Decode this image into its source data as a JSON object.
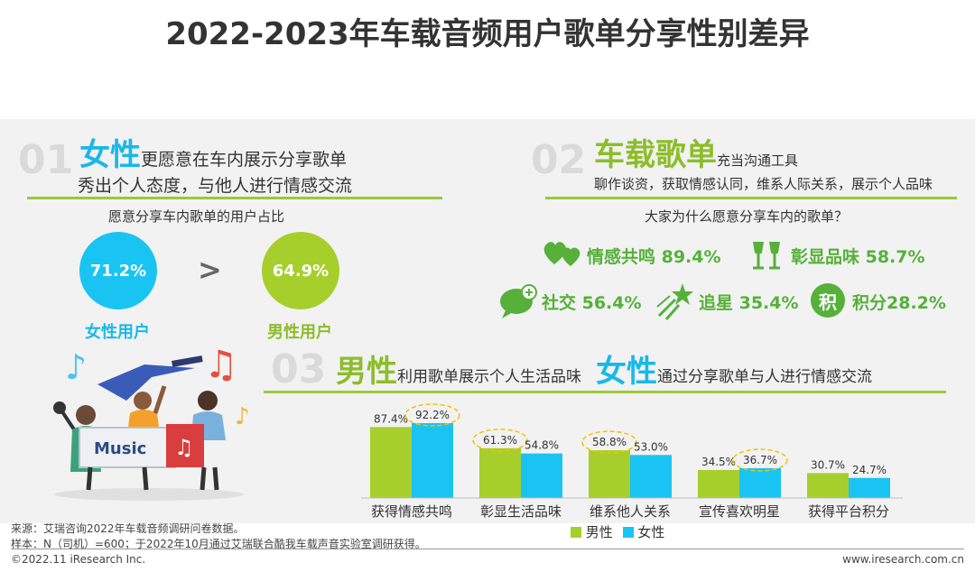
{
  "title": "2022-2023年车载音频用户歌单分享性别差异",
  "section1": {
    "number": "01",
    "highlight": "女性",
    "headline_rest": "更愿意在车内展示分享歌单",
    "subline": "秀出个人态度，与他人进行情感交流",
    "question": "愿意分享车内歌单的用户占比",
    "female": {
      "value": "71.2%",
      "label": "女性用户",
      "color": "#1ac4f2"
    },
    "compare": ">",
    "male": {
      "value": "64.9%",
      "label": "男性用户",
      "color": "#a6cf2c"
    },
    "illustration_text": "Music"
  },
  "section2": {
    "number": "02",
    "highlight": "车载歌单",
    "headline_rest": "充当沟通工具",
    "subline": "聊作谈资，获取情感认同，维系人际关系，展示个人品味",
    "question": "大家为什么愿意分享车内的歌单？",
    "reasons": [
      {
        "icon": "hearts-icon",
        "text": "情感共鸣 89.4%"
      },
      {
        "icon": "wine-glasses-icon",
        "text": "彰显品味 58.7%"
      },
      {
        "icon": "chat-bubble-icon",
        "text": "社交 56.4%"
      },
      {
        "icon": "shooting-star-icon",
        "text": "追星 35.4%"
      },
      {
        "icon": "points-badge-icon",
        "text": "积分28.2%",
        "badge": "积"
      }
    ]
  },
  "section3": {
    "number": "03",
    "highlight1": "男性",
    "text1": "利用歌单展示个人生活品味",
    "highlight2": "女性",
    "text2": "通过分享歌单与人进行情感交流"
  },
  "chart_data": {
    "type": "bar",
    "categories": [
      "获得情感共鸣",
      "彰显生活品味",
      "维系他人关系",
      "宣传喜欢明星",
      "获得平台积分"
    ],
    "series": [
      {
        "name": "男性",
        "values": [
          87.4,
          61.3,
          58.8,
          34.5,
          30.7
        ],
        "color": "#a6cf2c"
      },
      {
        "name": "女性",
        "values": [
          92.2,
          54.8,
          53.0,
          36.7,
          24.7
        ],
        "color": "#1ac4f2"
      }
    ],
    "data_labels": [
      [
        "87.4%",
        "61.3%",
        "58.8%",
        "34.5%",
        "30.7%"
      ],
      [
        "92.2%",
        "54.8%",
        "53.0%",
        "36.7%",
        "24.7%"
      ]
    ],
    "highlighted": [
      [
        0,
        1
      ],
      [
        1,
        0
      ],
      [
        2,
        0
      ],
      [
        3,
        1
      ]
    ],
    "ylim": [
      0,
      100
    ],
    "legend": "bottom-center"
  },
  "footer": {
    "source": "来源：艾瑞咨询2022年车载音频调研问卷数据。",
    "sample": "样本：N（司机）=600；于2022年10月通过艾瑞联合酷我车载声音实验室调研获得。",
    "copyright": "©2022.11 iResearch Inc.",
    "website": "www.iresearch.com.cn"
  }
}
